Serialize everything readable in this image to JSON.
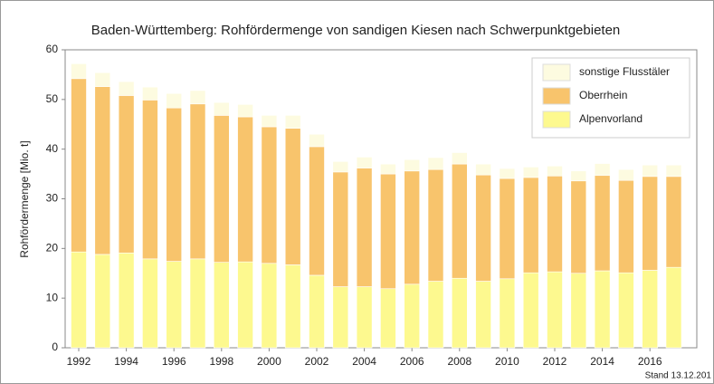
{
  "chart_data": {
    "type": "stacked_bar",
    "title": "Baden-Württemberg: Rohfördermenge von sandigen Kiesen nach Schwerpunktgebieten",
    "y_label": "Rohfördermenge [Mio. t]",
    "note": "Stand 13.12.201",
    "categories": [
      "1992",
      null,
      "1994",
      null,
      "1996",
      null,
      "1998",
      null,
      "2000",
      null,
      "2002",
      null,
      "2004",
      null,
      "2006",
      null,
      "2008",
      null,
      "2010",
      null,
      "2012",
      null,
      "2014",
      null,
      "2016",
      null
    ],
    "series": [
      {
        "name": "Alpenvorland",
        "color": "#fdf98f",
        "values": [
          19.3,
          18.8,
          19.1,
          17.9,
          17.4,
          17.9,
          17.2,
          17.3,
          17.0,
          16.7,
          14.6,
          12.3,
          12.3,
          11.9,
          12.8,
          13.4,
          14.0,
          13.4,
          13.9,
          15.1,
          15.3,
          15.0,
          15.5,
          15.1,
          15.6,
          16.2
        ]
      },
      {
        "name": "Oberrhein",
        "color": "#f8c46c",
        "values": [
          34.9,
          33.8,
          31.7,
          32.0,
          30.9,
          31.2,
          29.6,
          29.2,
          27.5,
          27.5,
          25.9,
          23.1,
          23.9,
          23.1,
          22.8,
          22.5,
          23.0,
          21.4,
          20.2,
          19.2,
          19.3,
          18.6,
          19.2,
          18.6,
          18.9,
          18.3
        ]
      },
      {
        "name": "sonstige Flusstäler",
        "color": "#fdfbe0",
        "values": [
          3.0,
          2.8,
          2.8,
          2.6,
          2.9,
          2.7,
          2.6,
          2.5,
          2.3,
          2.6,
          2.5,
          2.1,
          2.2,
          2.0,
          2.3,
          2.4,
          2.3,
          2.2,
          2.0,
          2.1,
          2.0,
          2.0,
          2.4,
          2.2,
          2.3,
          2.3
        ]
      }
    ],
    "ylim": [
      0,
      60
    ],
    "yticks": [
      0,
      10,
      20,
      30,
      40,
      50,
      60
    ],
    "grid": false,
    "legend": "top-right"
  }
}
